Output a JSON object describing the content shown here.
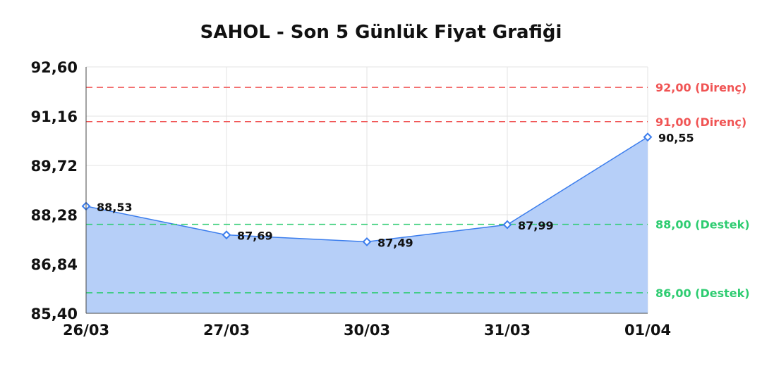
{
  "chart_data": {
    "type": "area",
    "title": "SAHOL - Son 5 Günlük Fiyat Grafiği",
    "categories": [
      "26/03",
      "27/03",
      "30/03",
      "31/03",
      "01/04"
    ],
    "values": [
      88.53,
      87.69,
      87.49,
      87.99,
      90.55
    ],
    "value_labels": [
      "88,53",
      "87,69",
      "87,49",
      "87,99",
      "90,55"
    ],
    "ylim": [
      85.4,
      92.6
    ],
    "yticks": [
      92.6,
      91.16,
      89.72,
      88.28,
      86.84,
      85.4
    ],
    "ytick_labels": [
      "92,60",
      "91,16",
      "89,72",
      "88,28",
      "86,84",
      "85,40"
    ],
    "grid": true,
    "reference_lines": [
      {
        "value": 92.0,
        "label": "92,00 (Direnç)",
        "color": "#f05454"
      },
      {
        "value": 91.0,
        "label": "91,00 (Direnç)",
        "color": "#f05454"
      },
      {
        "value": 88.0,
        "label": "88,00 (Destek)",
        "color": "#2ecc71"
      },
      {
        "value": 86.0,
        "label": "86,00 (Destek)",
        "color": "#2ecc71"
      }
    ],
    "colors": {
      "line": "#3b7ded",
      "fill": "#b6cff8"
    }
  }
}
